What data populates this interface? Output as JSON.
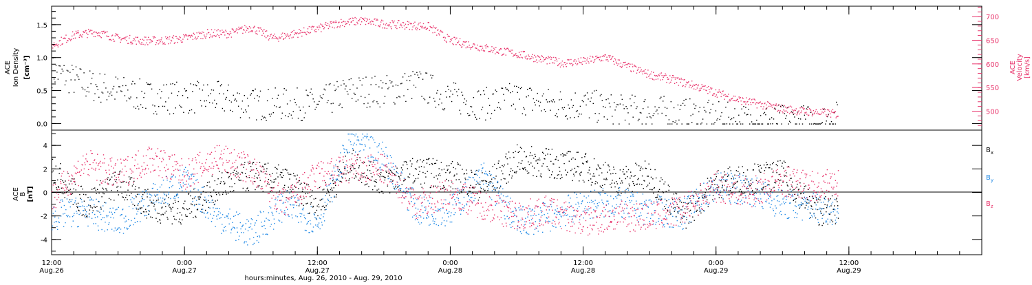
{
  "colors": {
    "black": "#000000",
    "velocity": "#e8336b",
    "by": "#1e88e5",
    "bz": "#e8336b"
  },
  "chart_data": [
    {
      "type": "scatter",
      "panel": "top",
      "ylabel_lines": [
        "ACE",
        "Ion Density",
        "[cm⁻³]"
      ],
      "y2label_lines": [
        "ACE",
        "Velocity",
        "[km/s]"
      ],
      "ylim": [
        -0.1,
        1.78
      ],
      "y2lim": [
        460,
        722
      ],
      "yticks": [
        0.0,
        0.5,
        1.0,
        1.5
      ],
      "yticklabels": [
        "0.0",
        "0.5",
        "1.0",
        "1.5"
      ],
      "y2ticks": [
        500,
        550,
        600,
        650,
        700
      ],
      "y2ticklabels": [
        "500",
        "550",
        "600",
        "650",
        "700"
      ],
      "series": [
        {
          "color": "#000000",
          "x_hours": [
            0,
            3,
            6,
            9,
            12,
            15,
            18,
            21,
            24,
            27,
            30,
            33,
            36,
            39,
            42,
            45,
            48,
            51,
            54,
            57,
            60,
            63,
            66,
            69,
            71
          ],
          "values": [
            0.8,
            0.6,
            0.5,
            0.4,
            0.4,
            0.4,
            0.3,
            0.3,
            0.3,
            0.5,
            0.5,
            0.6,
            0.4,
            0.3,
            0.4,
            0.3,
            0.3,
            0.2,
            0.2,
            0.15,
            0.1,
            0.05,
            0.05,
            0.05,
            0.1
          ]
        },
        {
          "color": "#e8336b",
          "axis": "right",
          "x_hours": [
            0,
            2,
            4,
            6,
            8,
            10,
            12,
            14,
            16,
            18,
            20,
            22,
            24,
            26,
            28,
            30,
            32,
            34,
            36,
            38,
            40,
            42,
            44,
            46,
            48,
            50,
            52,
            54,
            56,
            58,
            60,
            62,
            64,
            66,
            68,
            70,
            71
          ],
          "values": [
            640,
            662,
            668,
            655,
            650,
            650,
            655,
            665,
            665,
            678,
            655,
            665,
            675,
            688,
            692,
            685,
            683,
            680,
            650,
            640,
            630,
            622,
            612,
            603,
            606,
            615,
            595,
            578,
            568,
            555,
            540,
            525,
            515,
            506,
            500,
            497,
            494
          ]
        }
      ]
    },
    {
      "type": "scatter",
      "panel": "bottom",
      "ylabel_lines": [
        "ACE",
        "B",
        "[nT]"
      ],
      "ylim": [
        -5.3,
        5.3
      ],
      "yticks": [
        -4,
        -2,
        0,
        2,
        4
      ],
      "yticklabels": [
        "-4",
        "-2",
        "0",
        "2",
        "4"
      ],
      "legend": [
        "Bx",
        "By",
        "Bz"
      ],
      "legend_position": "right",
      "series": [
        {
          "name": "Bx",
          "color": "#000000",
          "x_hours": [
            0,
            3,
            6,
            9,
            12,
            15,
            18,
            21,
            24,
            27,
            30,
            33,
            36,
            39,
            42,
            45,
            48,
            51,
            54,
            57,
            60,
            63,
            66,
            69,
            71
          ],
          "values": [
            2.0,
            -1.0,
            0.8,
            -1.2,
            -1.5,
            0.5,
            1.5,
            1.0,
            -1.0,
            2.5,
            1.0,
            1.8,
            1.5,
            0.5,
            2.8,
            2.5,
            2.2,
            1.0,
            1.5,
            -2.0,
            0.8,
            1.2,
            1.5,
            -1.5,
            -1.5
          ]
        },
        {
          "name": "By",
          "color": "#1e88e5",
          "x_hours": [
            0,
            3,
            6,
            9,
            12,
            15,
            18,
            21,
            24,
            27,
            30,
            33,
            36,
            39,
            42,
            45,
            48,
            51,
            54,
            57,
            60,
            63,
            66,
            69,
            71
          ],
          "values": [
            -2.0,
            -1.5,
            -2.5,
            -0.5,
            1.0,
            -2.0,
            -3.5,
            -1.0,
            -2.5,
            4.5,
            3.0,
            -1.5,
            -1.5,
            1.5,
            -2.5,
            -2.0,
            -1.0,
            -0.8,
            -1.5,
            -1.8,
            0.5,
            0.3,
            -1.0,
            -1.2,
            -1.5
          ]
        },
        {
          "name": "Bz",
          "color": "#e8336b",
          "x_hours": [
            0,
            3,
            6,
            9,
            12,
            15,
            18,
            21,
            24,
            27,
            30,
            33,
            36,
            39,
            42,
            45,
            48,
            51,
            54,
            57,
            60,
            63,
            66,
            69,
            71
          ],
          "values": [
            -0.5,
            2.5,
            1.5,
            3.0,
            1.5,
            3.0,
            2.0,
            -1.0,
            1.5,
            2.0,
            2.0,
            -1.0,
            0.0,
            -1.0,
            -2.0,
            -1.5,
            -2.5,
            -2.0,
            -2.0,
            -1.5,
            0.5,
            0.0,
            1.0,
            0.5,
            1.0
          ]
        }
      ]
    }
  ],
  "x_axis": {
    "xlim_hours": [
      0,
      84
    ],
    "ticks_hours": [
      0,
      12,
      24,
      36,
      48,
      60,
      72
    ],
    "tick_time_labels": [
      "12:00",
      "0:00",
      "12:00",
      "0:00",
      "12:00",
      "0:00",
      "12:00"
    ],
    "tick_date_labels": [
      "Aug.26",
      "Aug.27",
      "Aug.27",
      "Aug.28",
      "Aug.28",
      "Aug.29",
      "Aug.29"
    ],
    "minor_step_hours": 2,
    "title": "hours:minutes, Aug. 26, 2010 - Aug. 29, 2010"
  },
  "legend_labels": {
    "bx": "B",
    "bx_sub": "x",
    "by": "B",
    "by_sub": "y",
    "bz": "B",
    "bz_sub": "z"
  }
}
